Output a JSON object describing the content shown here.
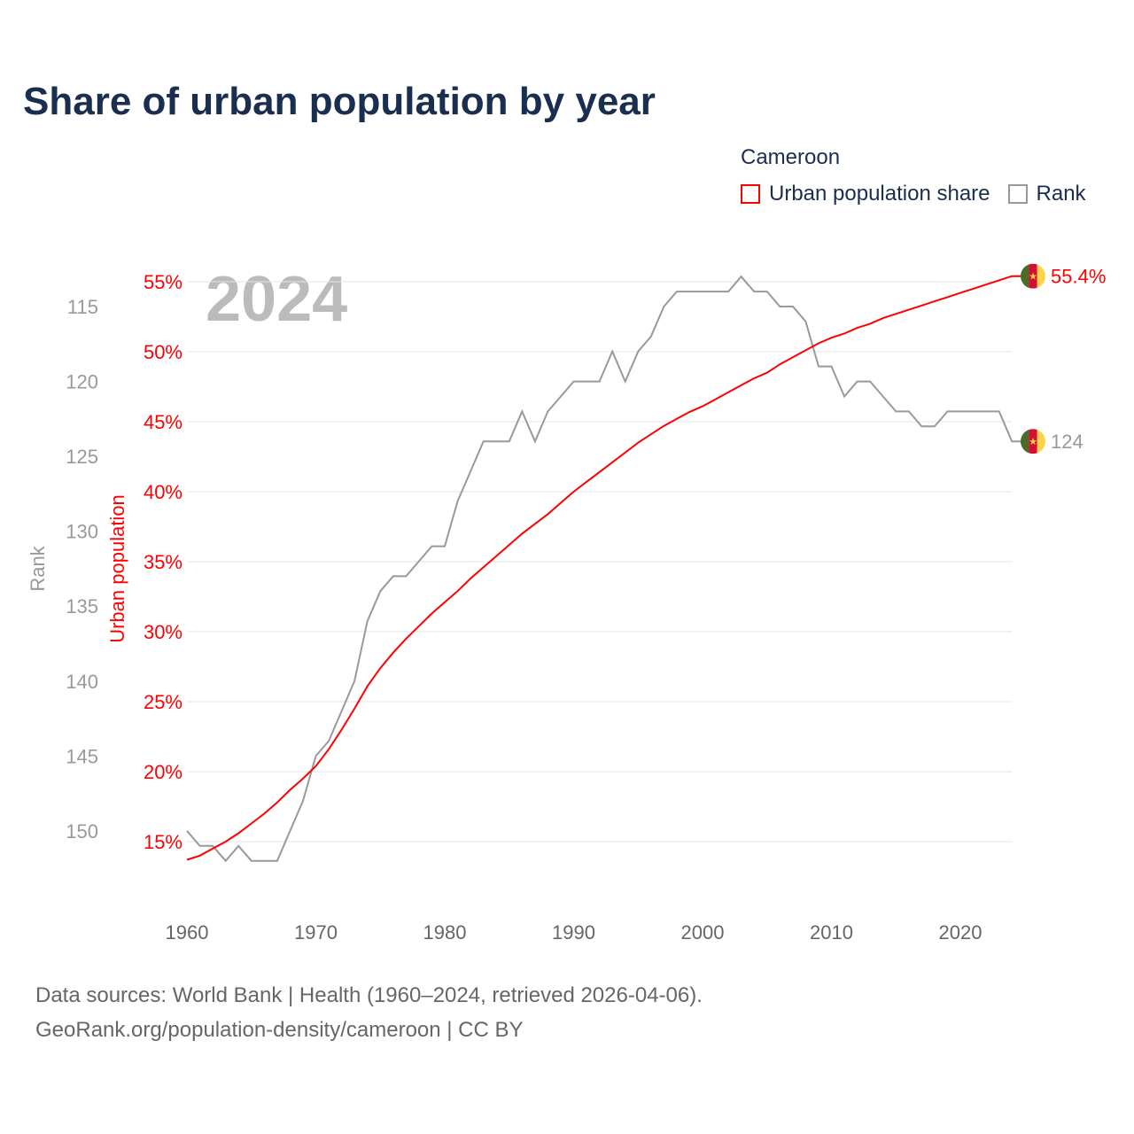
{
  "chart_data": {
    "type": "line",
    "title": "Share of urban population by year",
    "year_label": "2024",
    "legend_title": "Cameroon",
    "legend_placement": "top-right",
    "x_ticks": [
      "1960",
      "1970",
      "1980",
      "1990",
      "2000",
      "2010",
      "2020"
    ],
    "xlim": [
      1960,
      2024
    ],
    "left_axis_label": "Rank",
    "right_axis_label": "Urban population",
    "urban_ticks": [
      "15%",
      "20%",
      "25%",
      "30%",
      "35%",
      "40%",
      "45%",
      "50%",
      "55%"
    ],
    "urban_tick_values": [
      15,
      20,
      25,
      30,
      35,
      40,
      45,
      50,
      55
    ],
    "rank_ticks": [
      "115",
      "120",
      "125",
      "130",
      "135",
      "140",
      "145",
      "150"
    ],
    "rank_tick_values": [
      115,
      120,
      125,
      130,
      135,
      140,
      145,
      150
    ],
    "grid": true,
    "colors": {
      "urban": "#ff0000",
      "rank": "#999999"
    },
    "series": [
      {
        "name": "Urban population share",
        "end_label": "55.4%",
        "values": [
          13.7,
          14.0,
          14.5,
          15.0,
          15.6,
          16.3,
          17.0,
          17.8,
          18.7,
          19.5,
          20.4,
          21.6,
          23.0,
          24.5,
          26.1,
          27.4,
          28.5,
          29.5,
          30.4,
          31.3,
          32.1,
          32.9,
          33.8,
          34.6,
          35.4,
          36.2,
          37.0,
          37.7,
          38.4,
          39.2,
          40.0,
          40.7,
          41.4,
          42.1,
          42.8,
          43.5,
          44.1,
          44.7,
          45.2,
          45.7,
          46.1,
          46.6,
          47.1,
          47.6,
          48.1,
          48.5,
          49.1,
          49.6,
          50.1,
          50.6,
          51.0,
          51.3,
          51.7,
          52.0,
          52.4,
          52.7,
          53.0,
          53.3,
          53.6,
          53.9,
          54.2,
          54.5,
          54.8,
          55.1,
          55.4
        ]
      },
      {
        "name": "Rank",
        "end_label": "124",
        "values": [
          150,
          151,
          151,
          152,
          151,
          152,
          152,
          152,
          150,
          148,
          145,
          144,
          142,
          140,
          136,
          134,
          133,
          133,
          132,
          131,
          131,
          128,
          126,
          124,
          124,
          124,
          122,
          124,
          122,
          121,
          120,
          120,
          120,
          118,
          120,
          118,
          117,
          115,
          114,
          114,
          114,
          114,
          114,
          113,
          114,
          114,
          115,
          115,
          116,
          119,
          119,
          121,
          120,
          120,
          121,
          122,
          122,
          123,
          123,
          122,
          122,
          122,
          122,
          122,
          124
        ]
      }
    ]
  },
  "source_line1": "Data sources: World Bank | Health (1960–2024, retrieved 2026-04-06).",
  "source_line2": "GeoRank.org/population-density/cameroon | CC BY"
}
